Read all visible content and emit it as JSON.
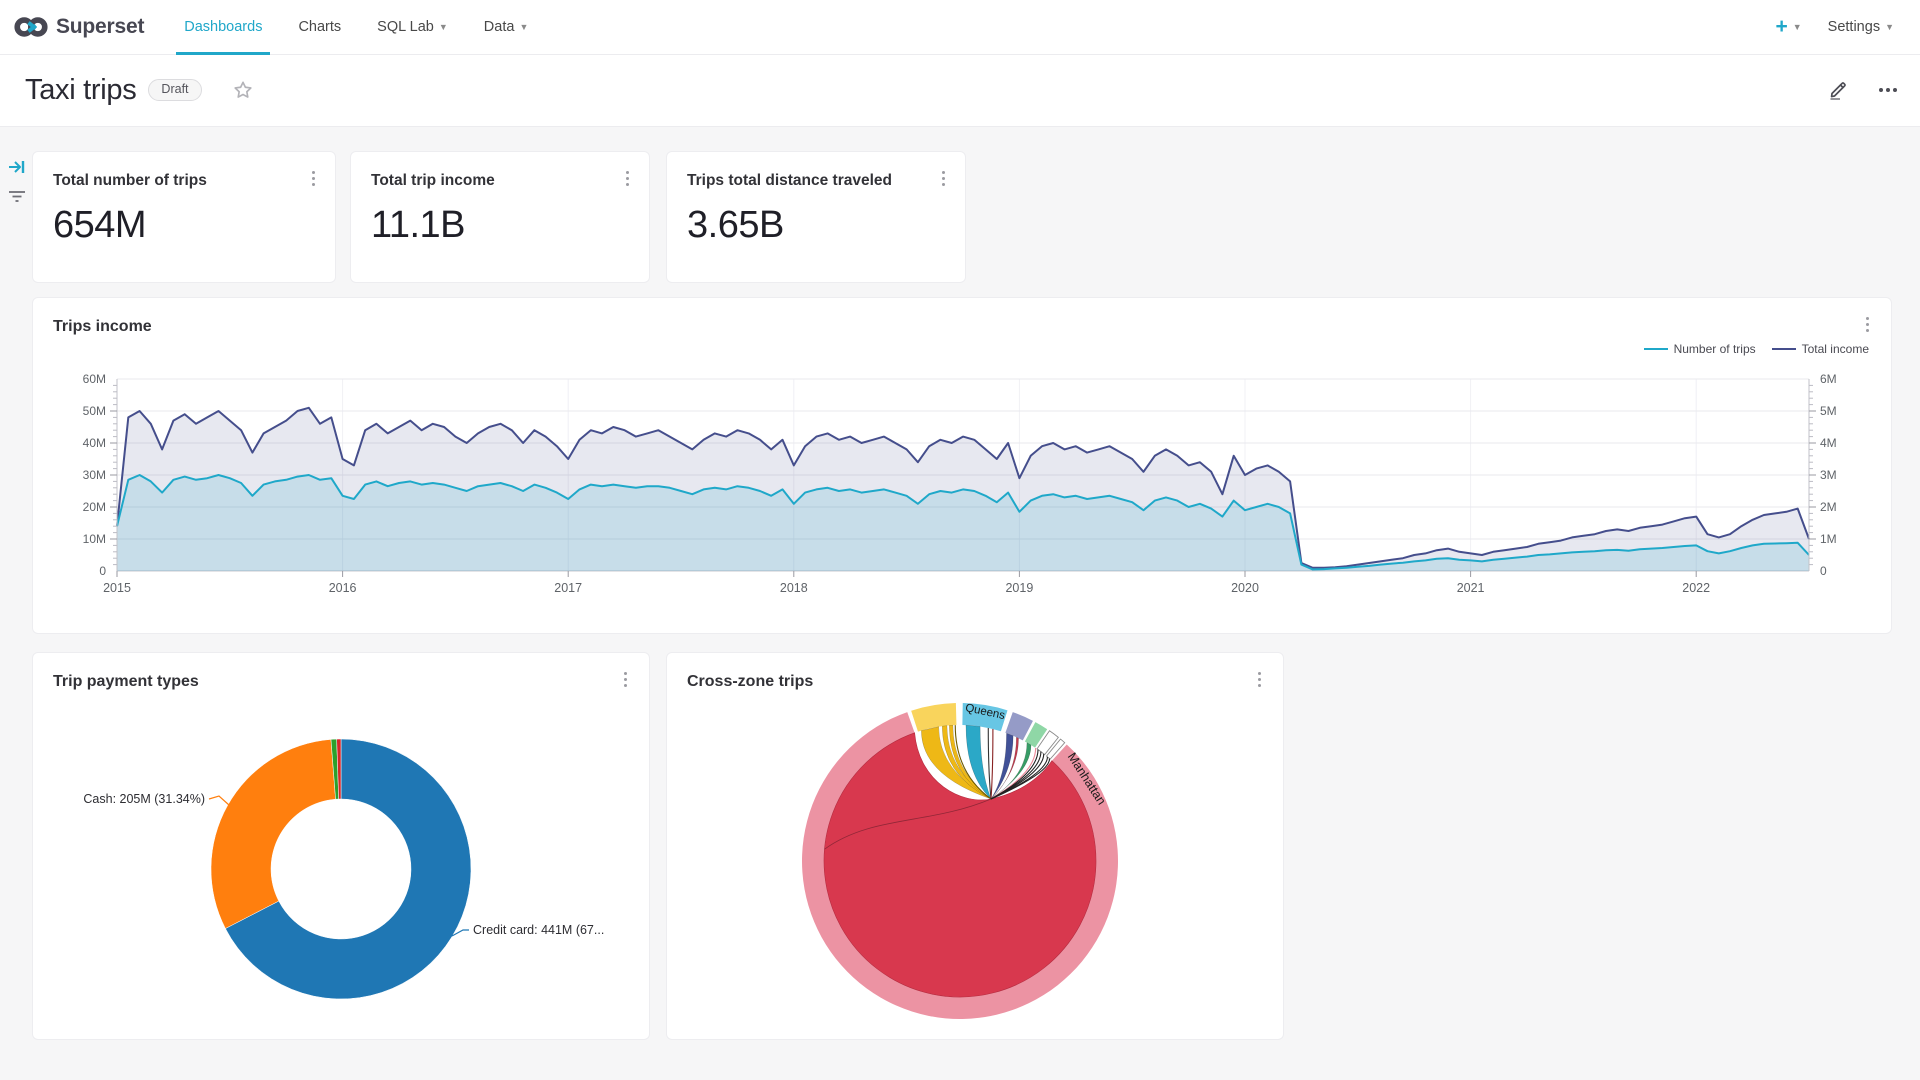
{
  "colors": {
    "accent": "#20a7c9",
    "nav_text": "#484848",
    "page_bg": "#f6f6f7",
    "income_line": "#454e8c",
    "trips_line": "#1fa8c9",
    "donut_blue": "#1f77b4",
    "donut_orange": "#ff7f0e",
    "donut_green": "#2ca02c",
    "donut_red": "#d62728",
    "chord_main": "#d8384e",
    "chord_ring": "#ec93a3"
  },
  "navbar": {
    "brand": "Superset",
    "items": [
      {
        "label": "Dashboards",
        "active": true,
        "caret": false
      },
      {
        "label": "Charts",
        "active": false,
        "caret": false
      },
      {
        "label": "SQL Lab",
        "active": false,
        "caret": true
      },
      {
        "label": "Data",
        "active": false,
        "caret": true
      }
    ],
    "plus_label": "+",
    "settings_label": "Settings"
  },
  "header": {
    "title": "Taxi trips",
    "status_badge": "Draft"
  },
  "kpis": [
    {
      "title": "Total number of trips",
      "value": "654M"
    },
    {
      "title": "Total trip income",
      "value": "11.1B"
    },
    {
      "title": "Trips total distance traveled",
      "value": "3.65B"
    }
  ],
  "income": {
    "title": "Trips income",
    "legend": [
      {
        "label": "Number of trips",
        "color": "#1fa8c9"
      },
      {
        "label": "Total income",
        "color": "#454e8c"
      }
    ],
    "chart_data": {
      "type": "line",
      "x_start": 2015,
      "x_step": 0.05,
      "x_ticks": [
        "2015",
        "2016",
        "2017",
        "2018",
        "2019",
        "2020",
        "2021",
        "2022"
      ],
      "y_left_ticks": [
        "0",
        "10M",
        "20M",
        "30M",
        "40M",
        "50M",
        "60M"
      ],
      "y_right_ticks": [
        "0",
        "1M",
        "2M",
        "3M",
        "4M",
        "5M",
        "6M"
      ],
      "y_left_max": 60,
      "y_right_max": 6,
      "grid": true,
      "legend_position": "top-right",
      "series": [
        {
          "name": "Total income",
          "axis": "left",
          "color": "#454e8c",
          "fill": "rgba(69,78,140,0.13)",
          "values": [
            14,
            48,
            50,
            46,
            38,
            47,
            49,
            46,
            48,
            50,
            47,
            44,
            37,
            43,
            45,
            47,
            50,
            51,
            46,
            48,
            35,
            33,
            44,
            46,
            43,
            45,
            47,
            44,
            46,
            45,
            42,
            40,
            43,
            45,
            46,
            44,
            40,
            44,
            42,
            39,
            35,
            41,
            44,
            43,
            45,
            44,
            42,
            43,
            44,
            42,
            40,
            38,
            41,
            43,
            42,
            44,
            43,
            41,
            38,
            41,
            33,
            39,
            42,
            43,
            41,
            42,
            40,
            41,
            42,
            40,
            38,
            34,
            39,
            41,
            40,
            42,
            41,
            38,
            35,
            40,
            29,
            36,
            39,
            40,
            38,
            39,
            37,
            38,
            39,
            37,
            35,
            31,
            36,
            38,
            36,
            33,
            34,
            31,
            24,
            36,
            30,
            32,
            33,
            31,
            28,
            2.5,
            1,
            1,
            1.2,
            1.5,
            2,
            2.5,
            3,
            3.5,
            4,
            5,
            5.5,
            6.5,
            7,
            6,
            5.5,
            5,
            6,
            6.5,
            7,
            7.5,
            8.5,
            9,
            9.5,
            10.5,
            11,
            11.5,
            12.5,
            13,
            12.5,
            13.5,
            14,
            14.5,
            15.5,
            16.5,
            17,
            11.5,
            10.5,
            11.5,
            14,
            16,
            17.5,
            18,
            18.5,
            19.5,
            10
          ]
        },
        {
          "name": "Number of trips",
          "axis": "right",
          "color": "#1fa8c9",
          "fill": "rgba(31,168,201,0.16)",
          "values": [
            1.4,
            2.85,
            3,
            2.8,
            2.45,
            2.85,
            2.95,
            2.85,
            2.9,
            3,
            2.9,
            2.75,
            2.35,
            2.7,
            2.8,
            2.85,
            2.95,
            3,
            2.85,
            2.9,
            2.35,
            2.25,
            2.7,
            2.8,
            2.65,
            2.75,
            2.8,
            2.7,
            2.75,
            2.7,
            2.6,
            2.5,
            2.65,
            2.7,
            2.75,
            2.65,
            2.5,
            2.7,
            2.6,
            2.45,
            2.25,
            2.55,
            2.7,
            2.65,
            2.7,
            2.65,
            2.6,
            2.65,
            2.65,
            2.6,
            2.5,
            2.4,
            2.55,
            2.6,
            2.55,
            2.65,
            2.6,
            2.5,
            2.35,
            2.55,
            2.1,
            2.45,
            2.55,
            2.6,
            2.5,
            2.55,
            2.45,
            2.5,
            2.55,
            2.45,
            2.35,
            2.1,
            2.4,
            2.5,
            2.45,
            2.55,
            2.5,
            2.35,
            2.15,
            2.45,
            1.85,
            2.2,
            2.35,
            2.4,
            2.3,
            2.35,
            2.25,
            2.3,
            2.35,
            2.25,
            2.15,
            1.9,
            2.2,
            2.3,
            2.2,
            2,
            2.1,
            1.95,
            1.7,
            2.2,
            1.9,
            2,
            2.1,
            2,
            1.8,
            0.2,
            0.05,
            0.06,
            0.08,
            0.1,
            0.13,
            0.16,
            0.2,
            0.23,
            0.26,
            0.3,
            0.33,
            0.38,
            0.4,
            0.35,
            0.33,
            0.3,
            0.35,
            0.38,
            0.42,
            0.45,
            0.5,
            0.52,
            0.55,
            0.58,
            0.6,
            0.62,
            0.65,
            0.66,
            0.63,
            0.68,
            0.7,
            0.72,
            0.75,
            0.78,
            0.8,
            0.62,
            0.55,
            0.62,
            0.72,
            0.8,
            0.85,
            0.86,
            0.87,
            0.88,
            0.5
          ]
        }
      ]
    }
  },
  "payment": {
    "title": "Trip payment types",
    "labels": {
      "cash": "Cash: 205M (31.34%)",
      "credit": "Credit card: 441M (67..."
    },
    "chart_data": {
      "type": "pie",
      "donut": true,
      "slices": [
        {
          "name": "Credit card",
          "value_m": 441,
          "pct": 67.43,
          "color": "#1f77b4"
        },
        {
          "name": "Cash",
          "value_m": 205,
          "pct": 31.34,
          "color": "#ff7f0e"
        },
        {
          "name": "",
          "pct": 0.7,
          "color": "#2ca02c"
        },
        {
          "name": "",
          "pct": 0.53,
          "color": "#d62728"
        }
      ],
      "title": "Trip payment types"
    }
  },
  "crosszone": {
    "title": "Cross-zone trips",
    "chart_data": {
      "type": "chord",
      "labeled_zones": [
        "Queens",
        "Manhattan"
      ],
      "dominant_flow": "Manhattan to Manhattan",
      "arcs": [
        {
          "label": "",
          "start": -18,
          "end": -1.5,
          "color": "#f9d45c"
        },
        {
          "label": "Queens",
          "start": 1,
          "end": 17.5,
          "color": "#67c6e4"
        },
        {
          "label": "",
          "start": 19.5,
          "end": 27.5,
          "color": "#959bc7"
        },
        {
          "label": "",
          "start": 28.5,
          "end": 33.5,
          "color": "#8fd7a6"
        },
        {
          "label": "",
          "start": 34.5,
          "end": 38.5,
          "color": "#ffffff",
          "outlined": true
        },
        {
          "label": "",
          "start": 39.5,
          "end": 41.5,
          "color": "#ffffff",
          "outlined": true
        },
        {
          "label": "Manhattan",
          "start": 42.5,
          "end": 340.5,
          "color": "#ec93a3"
        }
      ],
      "bands": [
        {
          "a0": -16.5,
          "a1": -9,
          "color": "#eeb60d"
        },
        {
          "a0": -7.5,
          "a1": -5.5,
          "color": "#eeb60d"
        },
        {
          "a0": -4.5,
          "a1": -3,
          "color": "#eeb60d"
        },
        {
          "a0": 2.5,
          "a1": 8.5,
          "color": "#23a5c5"
        },
        {
          "a0": 20,
          "a1": 23,
          "color": "#3a4a93"
        },
        {
          "a0": 24.5,
          "a1": 25.5,
          "color": "#c13347"
        },
        {
          "a0": 29.5,
          "a1": 31.5,
          "color": "#2f9960"
        }
      ],
      "lines": [
        {
          "a": -2,
          "color": "#6b5900"
        },
        {
          "a": 12,
          "color": "#333333"
        },
        {
          "a": 14,
          "color": "#882222"
        },
        {
          "a": 33.8,
          "color": "#ee8899"
        },
        {
          "a": 35,
          "color": "#222222"
        },
        {
          "a": 36.5,
          "color": "#222222"
        },
        {
          "a": 38,
          "color": "#222222"
        },
        {
          "a": 40,
          "color": "#222222"
        },
        {
          "a": 41.2,
          "color": "#222222"
        }
      ]
    }
  }
}
